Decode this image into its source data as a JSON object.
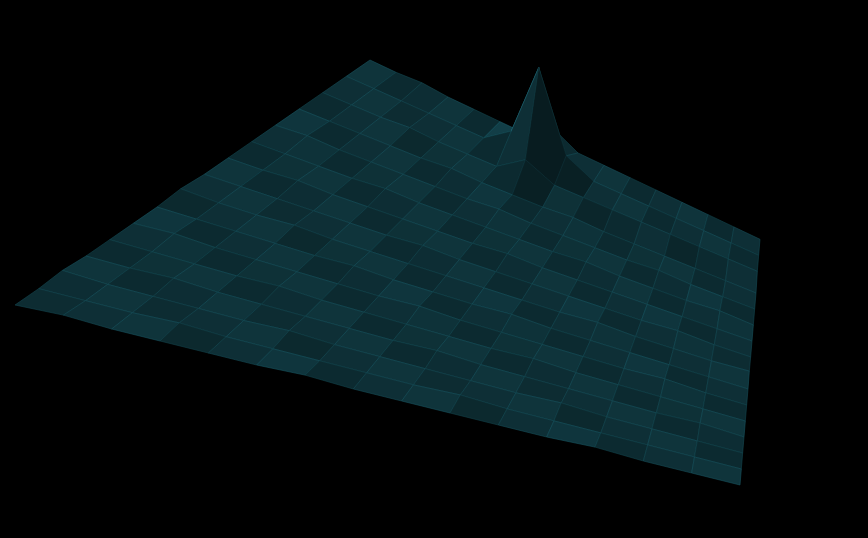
{
  "chart_data": {
    "type": "surface",
    "color": "#1b5e6b",
    "tick_labels": false,
    "z": [
      [
        0,
        0.2,
        0,
        0,
        0,
        0,
        0.2,
        0,
        0,
        0,
        0,
        0,
        0.2,
        0,
        0,
        0
      ],
      [
        0,
        0,
        0,
        0.2,
        0,
        0,
        0,
        0,
        0,
        0.2,
        0,
        0,
        0,
        0,
        0,
        0
      ],
      [
        0.2,
        0,
        0,
        0,
        0,
        0.2,
        0,
        0,
        0,
        0,
        0,
        0.2,
        0,
        0,
        0,
        0
      ],
      [
        0,
        0,
        0.2,
        0,
        0,
        0,
        0,
        0,
        0.2,
        0,
        0,
        0,
        0,
        0,
        0.2,
        0
      ],
      [
        0,
        0,
        0,
        0,
        0.2,
        0,
        0,
        0,
        0,
        0,
        0.2,
        0,
        0,
        0,
        0,
        0
      ],
      [
        0,
        0.2,
        0,
        0,
        0,
        0,
        0,
        0.2,
        0,
        0,
        0,
        0,
        0,
        0.2,
        0,
        0
      ],
      [
        0,
        0,
        0,
        0,
        0,
        0.2,
        0,
        0,
        0,
        0.2,
        0,
        0,
        0,
        0,
        0,
        0
      ],
      [
        0.2,
        0,
        0,
        0.2,
        0,
        0,
        0,
        0,
        0,
        0,
        0,
        0.2,
        0,
        0,
        0,
        0.2
      ],
      [
        0,
        0,
        0,
        0,
        0,
        0,
        0.2,
        0,
        0,
        0,
        0,
        0,
        0,
        0.2,
        0,
        0
      ],
      [
        0,
        0,
        0.2,
        0,
        0,
        0,
        0,
        0,
        0.2,
        0,
        0,
        0,
        0,
        0,
        0,
        0
      ],
      [
        0,
        0,
        0,
        0,
        0.2,
        0,
        0,
        0,
        0,
        0,
        0.2,
        0,
        0,
        0,
        0.2,
        0
      ],
      [
        0,
        0.2,
        0,
        0,
        0,
        0,
        0,
        0.2,
        0,
        0,
        0,
        0,
        0.2,
        0,
        0,
        0
      ],
      [
        0,
        0,
        0,
        0,
        0,
        0.2,
        0,
        0,
        0,
        0.2,
        0,
        0,
        0,
        0,
        0,
        0
      ],
      [
        0,
        0,
        0,
        0.2,
        0,
        0,
        0,
        2,
        0.6,
        0.6,
        0.6,
        0.6,
        0.6,
        0.6,
        0.6,
        0.6
      ],
      [
        0,
        0,
        0,
        0,
        0,
        0,
        2,
        10,
        2,
        0.6,
        0.6,
        0.6,
        0.6,
        0.6,
        0.6,
        0.6
      ],
      [
        0,
        0,
        0.2,
        0,
        0,
        0,
        0,
        2,
        0.6,
        0.6,
        0.6,
        0.6,
        0.6,
        0.6,
        0.6,
        0.6
      ]
    ]
  }
}
